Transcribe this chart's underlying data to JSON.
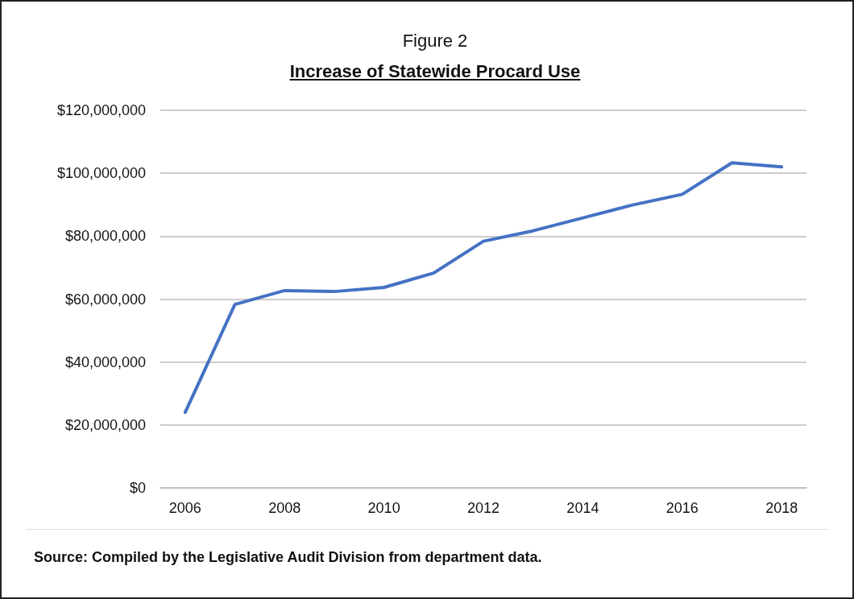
{
  "chart_data": {
    "type": "line",
    "title": "Figure 2",
    "subtitle": "Increase of Statewide Procard Use",
    "categories": [
      "2006",
      null,
      "2008",
      null,
      "2010",
      null,
      "2012",
      null,
      "2014",
      null,
      "2016",
      null,
      "2018"
    ],
    "series": [
      {
        "color": "#4472c4",
        "values": [
          24000000,
          58300000,
          62700000,
          62400000,
          63700000,
          68300000,
          78400000,
          81700000,
          85800000,
          89900000,
          93300000,
          103300000,
          102000000
        ]
      }
    ],
    "ylim": [
      0,
      120000000
    ],
    "yticks": [
      {
        "value": 0,
        "label": "$0"
      },
      {
        "value": 20000000,
        "label": "$20,000,000"
      },
      {
        "value": 40000000,
        "label": "$40,000,000"
      },
      {
        "value": 60000000,
        "label": "$60,000,000"
      },
      {
        "value": 80000000,
        "label": "$80,000,000"
      },
      {
        "value": 100000000,
        "label": "$100,000,000"
      },
      {
        "value": 120000000,
        "label": "$120,000,000"
      }
    ],
    "grid": "y",
    "marker": "none",
    "line_style": "solid",
    "annotations": [
      "Source:  Compiled by the Legislative Audit Division from department data."
    ]
  }
}
